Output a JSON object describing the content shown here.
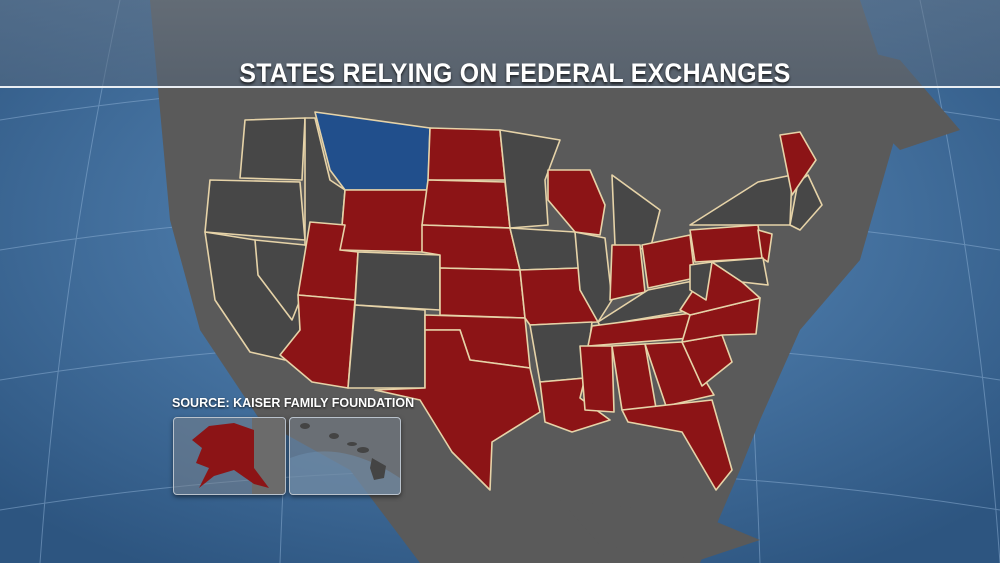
{
  "title": "STATES RELYING ON FEDERAL EXCHANGES",
  "source": "SOURCE: KAISER FAMILY FOUNDATION",
  "colors": {
    "federal_exchange": "#8c1416",
    "other": "#474747",
    "highlight": "#214f8c",
    "ocean": "#3f6c9c",
    "border": "#e6d3a8"
  }
}
